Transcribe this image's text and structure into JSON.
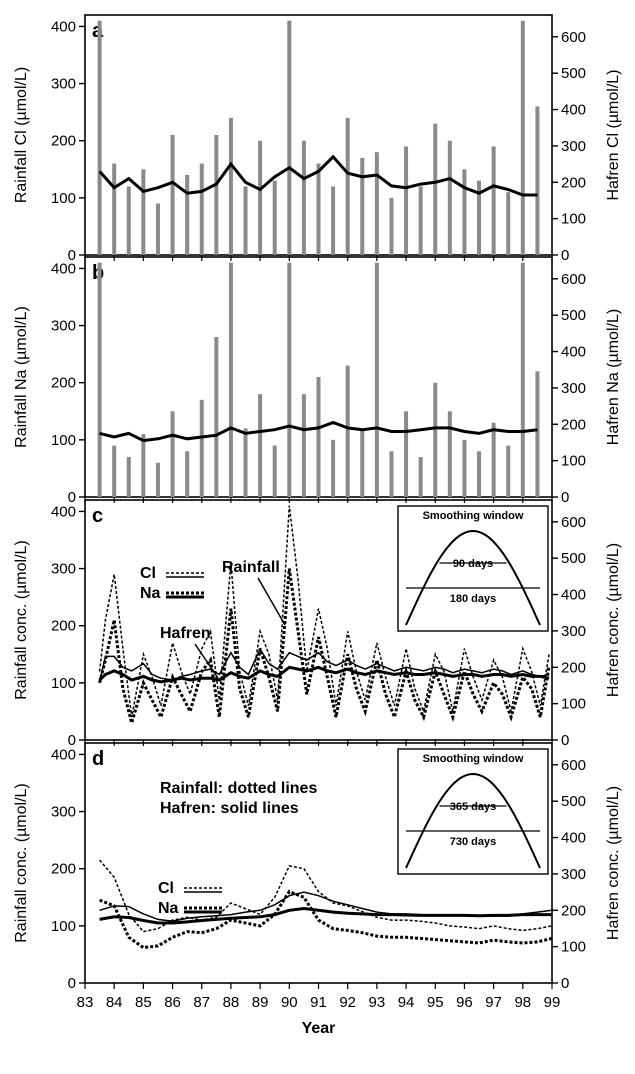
{
  "chart_data": [
    {
      "panel": "a",
      "type": "bar",
      "left_ylabel": "Rainfall Cl (µmol/L)",
      "right_ylabel": "Hafren Cl (µmol/L)",
      "ylim_left": [
        0,
        420
      ],
      "ylim_right": [
        0,
        660
      ],
      "yticks_left": [
        0,
        100,
        200,
        300,
        400
      ],
      "yticks_right": [
        0,
        100,
        200,
        300,
        400,
        500,
        600
      ],
      "x": [
        83.5,
        84,
        84.5,
        85,
        85.5,
        86,
        86.5,
        87,
        87.5,
        88,
        88.5,
        89,
        89.5,
        90,
        90.5,
        91,
        91.5,
        92,
        92.5,
        93,
        93.5,
        94,
        94.5,
        95,
        95.5,
        96,
        96.5,
        97,
        97.5,
        98,
        98.5
      ],
      "series": [
        {
          "name": "Rainfall Cl",
          "axis": "left",
          "style": "bars",
          "values": [
            410,
            160,
            120,
            150,
            90,
            210,
            140,
            160,
            210,
            240,
            120,
            200,
            130,
            410,
            200,
            160,
            120,
            240,
            170,
            180,
            100,
            190,
            120,
            230,
            200,
            150,
            130,
            190,
            110,
            410,
            260
          ]
        },
        {
          "name": "Hafren Cl",
          "axis": "right",
          "style": "line",
          "values": [
            230,
            185,
            210,
            175,
            185,
            200,
            170,
            175,
            195,
            250,
            200,
            180,
            215,
            240,
            210,
            230,
            270,
            225,
            215,
            220,
            190,
            185,
            195,
            200,
            210,
            185,
            170,
            190,
            180,
            165,
            165
          ]
        }
      ]
    },
    {
      "panel": "b",
      "type": "bar",
      "left_ylabel": "Rainfall Na (µmol/L)",
      "right_ylabel": "Hafren Na (µmol/L)",
      "ylim_left": [
        0,
        420
      ],
      "ylim_right": [
        0,
        660
      ],
      "yticks_left": [
        0,
        100,
        200,
        300,
        400
      ],
      "yticks_right": [
        0,
        100,
        200,
        300,
        400,
        500,
        600
      ],
      "x": [
        83.5,
        84,
        84.5,
        85,
        85.5,
        86,
        86.5,
        87,
        87.5,
        88,
        88.5,
        89,
        89.5,
        90,
        90.5,
        91,
        91.5,
        92,
        92.5,
        93,
        93.5,
        94,
        94.5,
        95,
        95.5,
        96,
        96.5,
        97,
        97.5,
        98,
        98.5
      ],
      "series": [
        {
          "name": "Rainfall Na",
          "axis": "left",
          "style": "bars",
          "values": [
            410,
            90,
            70,
            110,
            60,
            150,
            80,
            170,
            280,
            410,
            120,
            180,
            90,
            410,
            180,
            210,
            100,
            230,
            120,
            410,
            80,
            150,
            70,
            200,
            150,
            100,
            80,
            130,
            90,
            410,
            220
          ]
        },
        {
          "name": "Hafren Na",
          "axis": "right",
          "style": "line",
          "values": [
            175,
            165,
            175,
            155,
            160,
            170,
            160,
            165,
            170,
            190,
            175,
            180,
            185,
            195,
            185,
            190,
            205,
            190,
            185,
            190,
            180,
            180,
            185,
            190,
            190,
            180,
            175,
            185,
            180,
            180,
            185
          ]
        }
      ]
    },
    {
      "panel": "c",
      "type": "line",
      "left_ylabel": "Rainfall conc. (µmol/L)",
      "right_ylabel": "Hafren conc. (µmol/L)",
      "ylim_left": [
        0,
        420
      ],
      "ylim_right": [
        0,
        660
      ],
      "yticks_left": [
        0,
        100,
        200,
        300,
        400
      ],
      "yticks_right": [
        0,
        100,
        200,
        300,
        400,
        500,
        600
      ],
      "legend": [
        "Cl",
        "Na"
      ],
      "annotations": [
        "Rainfall",
        "Hafren"
      ],
      "inset": {
        "title": "Smoothing window",
        "inner": "90 days",
        "outer": "180 days"
      },
      "x": [
        83.5,
        83.7,
        84,
        84.3,
        84.6,
        85,
        85.3,
        85.6,
        86,
        86.3,
        86.6,
        87,
        87.3,
        87.6,
        88,
        88.3,
        88.6,
        89,
        89.3,
        89.6,
        90,
        90.3,
        90.6,
        91,
        91.3,
        91.6,
        92,
        92.3,
        92.6,
        93,
        93.3,
        93.6,
        94,
        94.3,
        94.6,
        95,
        95.3,
        95.6,
        96,
        96.3,
        96.6,
        97,
        97.3,
        97.6,
        98,
        98.3,
        98.6,
        98.9
      ],
      "series": [
        {
          "name": "Rainfall Cl",
          "axis": "left",
          "style": "dotted-thin",
          "values": [
            120,
            210,
            290,
            160,
            40,
            150,
            110,
            60,
            170,
            120,
            80,
            160,
            190,
            70,
            310,
            120,
            60,
            190,
            150,
            70,
            410,
            280,
            120,
            230,
            160,
            60,
            190,
            120,
            70,
            170,
            110,
            60,
            160,
            90,
            50,
            150,
            120,
            50,
            160,
            110,
            70,
            140,
            110,
            50,
            160,
            120,
            60,
            150
          ]
        },
        {
          "name": "Rainfall Na",
          "axis": "left",
          "style": "dotted-thick",
          "values": [
            100,
            140,
            210,
            90,
            30,
            100,
            70,
            40,
            110,
            80,
            50,
            120,
            140,
            40,
            230,
            90,
            40,
            160,
            110,
            50,
            300,
            190,
            80,
            180,
            110,
            40,
            150,
            90,
            50,
            140,
            80,
            40,
            120,
            70,
            40,
            120,
            80,
            40,
            120,
            80,
            50,
            100,
            80,
            40,
            110,
            90,
            40,
            130
          ]
        },
        {
          "name": "Hafren Cl",
          "axis": "right",
          "style": "solid-thin",
          "values": [
            160,
            230,
            230,
            200,
            190,
            210,
            180,
            170,
            165,
            175,
            180,
            190,
            195,
            180,
            240,
            200,
            180,
            250,
            210,
            195,
            240,
            230,
            220,
            240,
            215,
            205,
            220,
            205,
            195,
            210,
            200,
            190,
            200,
            195,
            190,
            200,
            195,
            185,
            195,
            190,
            185,
            195,
            190,
            180,
            190,
            180,
            175,
            180
          ]
        },
        {
          "name": "Hafren Na",
          "axis": "right",
          "style": "solid-thick",
          "values": [
            165,
            180,
            190,
            180,
            165,
            175,
            165,
            160,
            165,
            170,
            165,
            170,
            170,
            165,
            185,
            175,
            170,
            190,
            180,
            175,
            200,
            195,
            190,
            200,
            190,
            185,
            195,
            185,
            180,
            190,
            185,
            180,
            185,
            180,
            180,
            185,
            180,
            175,
            180,
            180,
            175,
            180,
            180,
            175,
            180,
            175,
            175,
            170
          ]
        }
      ]
    },
    {
      "panel": "d",
      "type": "line",
      "xlabel": "Year",
      "left_ylabel": "Rainfall conc. (µmol/L)",
      "right_ylabel": "Hafren conc. (µmol/L)",
      "ylim_left": [
        0,
        420
      ],
      "ylim_right": [
        0,
        660
      ],
      "yticks_left": [
        0,
        100,
        200,
        300,
        400
      ],
      "yticks_right": [
        0,
        100,
        200,
        300,
        400,
        500,
        600
      ],
      "xticks": [
        "83",
        "84",
        "85",
        "86",
        "87",
        "88",
        "89",
        "90",
        "91",
        "92",
        "93",
        "94",
        "95",
        "96",
        "97",
        "98",
        "99"
      ],
      "xlim": [
        83,
        99
      ],
      "legend": [
        "Cl",
        "Na"
      ],
      "notes": [
        "Rainfall: dotted lines",
        "Hafren: solid lines"
      ],
      "inset": {
        "title": "Smoothing window",
        "inner": "365 days",
        "outer": "730 days"
      },
      "x": [
        83.5,
        84,
        84.5,
        85,
        85.5,
        86,
        86.5,
        87,
        87.5,
        88,
        88.5,
        89,
        89.5,
        90,
        90.5,
        91,
        91.5,
        92,
        92.5,
        93,
        93.5,
        94,
        94.5,
        95,
        95.5,
        96,
        96.5,
        97,
        97.5,
        98,
        98.5,
        99
      ],
      "series": [
        {
          "name": "Rainfall Cl",
          "axis": "left",
          "style": "dotted-thin",
          "values": [
            215,
            185,
            120,
            90,
            95,
            110,
            115,
            110,
            115,
            140,
            130,
            120,
            150,
            205,
            200,
            160,
            140,
            135,
            125,
            115,
            110,
            110,
            108,
            105,
            100,
            98,
            95,
            100,
            95,
            92,
            95,
            100
          ]
        },
        {
          "name": "Rainfall Na",
          "axis": "left",
          "style": "dotted-thick",
          "values": [
            145,
            135,
            80,
            62,
            65,
            80,
            90,
            88,
            95,
            110,
            105,
            100,
            120,
            160,
            150,
            110,
            95,
            92,
            88,
            82,
            80,
            80,
            78,
            76,
            74,
            72,
            70,
            75,
            72,
            70,
            72,
            78
          ]
        },
        {
          "name": "Hafren Cl",
          "axis": "right",
          "style": "solid-thin",
          "values": [
            200,
            212,
            210,
            190,
            175,
            170,
            178,
            182,
            185,
            188,
            195,
            200,
            215,
            240,
            250,
            240,
            225,
            215,
            205,
            195,
            190,
            190,
            188,
            186,
            186,
            186,
            184,
            184,
            184,
            190,
            195,
            200
          ]
        },
        {
          "name": "Hafren Na",
          "axis": "right",
          "style": "solid-thick",
          "values": [
            175,
            182,
            180,
            172,
            165,
            165,
            168,
            172,
            175,
            178,
            180,
            182,
            188,
            200,
            205,
            200,
            195,
            192,
            190,
            188,
            188,
            187,
            186,
            186,
            186,
            186,
            185,
            186,
            186,
            188,
            188,
            188
          ]
        }
      ]
    }
  ]
}
